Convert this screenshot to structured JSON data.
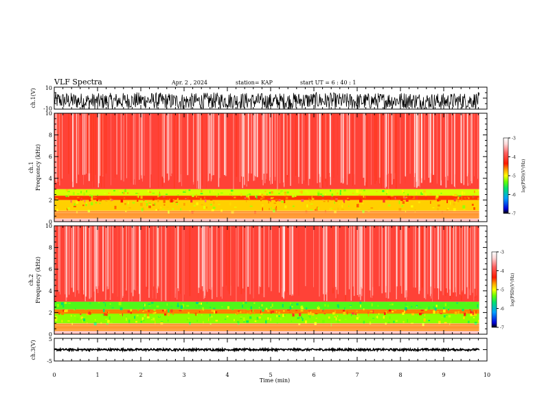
{
  "header": {
    "title": "VLF Spectra",
    "date": "Apr. 2 , 2024",
    "station": "station= KAP",
    "start": "start UT = 6 : 40 : 1"
  },
  "colorbar": {
    "label": "log(PSD)(V²/Hz)",
    "ticks": [
      "-3",
      "-4",
      "-5",
      "-6",
      "-7"
    ],
    "colors": [
      "#000000",
      "#0000d8",
      "#00a0ff",
      "#00e070",
      "#66ff00",
      "#ffff00",
      "#ffa000",
      "#ff1a00",
      "#ff6060",
      "#ffd8d8",
      "#ffffff"
    ]
  },
  "chart_data": [
    {
      "type": "line",
      "panel": "ch1-waveform",
      "ylabel": "ch.1(V)",
      "ylim": [
        -10,
        10
      ],
      "yticks": [
        "10",
        "-10"
      ],
      "xlim": [
        0,
        10
      ],
      "x": [
        0,
        1,
        2,
        3,
        4,
        5,
        6,
        7,
        8,
        9,
        9.8
      ],
      "values": [
        -2,
        -3,
        -2,
        -3,
        -2,
        -3,
        -2,
        -3,
        -2,
        -3,
        -2
      ]
    },
    {
      "type": "heatmap",
      "panel": "ch1-spectrogram",
      "ylabel": "ch.1\nFrequency (kHz)",
      "ylim": [
        0,
        10
      ],
      "yticks": [
        "0",
        "2",
        "4",
        "6",
        "8",
        "10"
      ],
      "xlim": [
        0,
        10
      ],
      "bands": [
        {
          "f_khz": [
            0,
            0.3
          ],
          "log_psd": -3.2
        },
        {
          "f_khz": [
            0.3,
            1.0
          ],
          "log_psd": -4.0
        },
        {
          "f_khz": [
            1.0,
            2.0
          ],
          "log_psd": -4.3
        },
        {
          "f_khz": [
            2.0,
            2.4
          ],
          "log_psd": -3.8
        },
        {
          "f_khz": [
            2.4,
            3.0
          ],
          "log_psd": -4.6
        },
        {
          "f_khz": [
            3.0,
            10.0
          ],
          "log_psd": -3.5
        }
      ]
    },
    {
      "type": "heatmap",
      "panel": "ch2-spectrogram",
      "ylabel": "ch.2\nFrequency (kHz)",
      "ylim": [
        0,
        10
      ],
      "yticks": [
        "0",
        "2",
        "4",
        "6",
        "8",
        "10"
      ],
      "xlim": [
        0,
        10
      ],
      "bands": [
        {
          "f_khz": [
            0,
            0.3
          ],
          "log_psd": -3.2
        },
        {
          "f_khz": [
            0.3,
            1.0
          ],
          "log_psd": -4.0
        },
        {
          "f_khz": [
            1.0,
            1.9
          ],
          "log_psd": -4.8
        },
        {
          "f_khz": [
            1.9,
            2.3
          ],
          "log_psd": -4.0
        },
        {
          "f_khz": [
            2.3,
            3.0
          ],
          "log_psd": -5.0
        },
        {
          "f_khz": [
            3.0,
            10.0
          ],
          "log_psd": -3.5
        }
      ]
    },
    {
      "type": "line",
      "panel": "ch3-waveform",
      "ylabel": "ch.3(V)",
      "ylim": [
        -5,
        5
      ],
      "yticks": [
        "5",
        "-5"
      ],
      "xlim": [
        0,
        10
      ],
      "x": [
        0,
        9.8
      ],
      "values": [
        0,
        0
      ]
    }
  ],
  "xaxis": {
    "label": "Time (min)",
    "ticks": [
      "0",
      "1",
      "2",
      "3",
      "4",
      "5",
      "6",
      "7",
      "8",
      "9",
      "10"
    ]
  }
}
